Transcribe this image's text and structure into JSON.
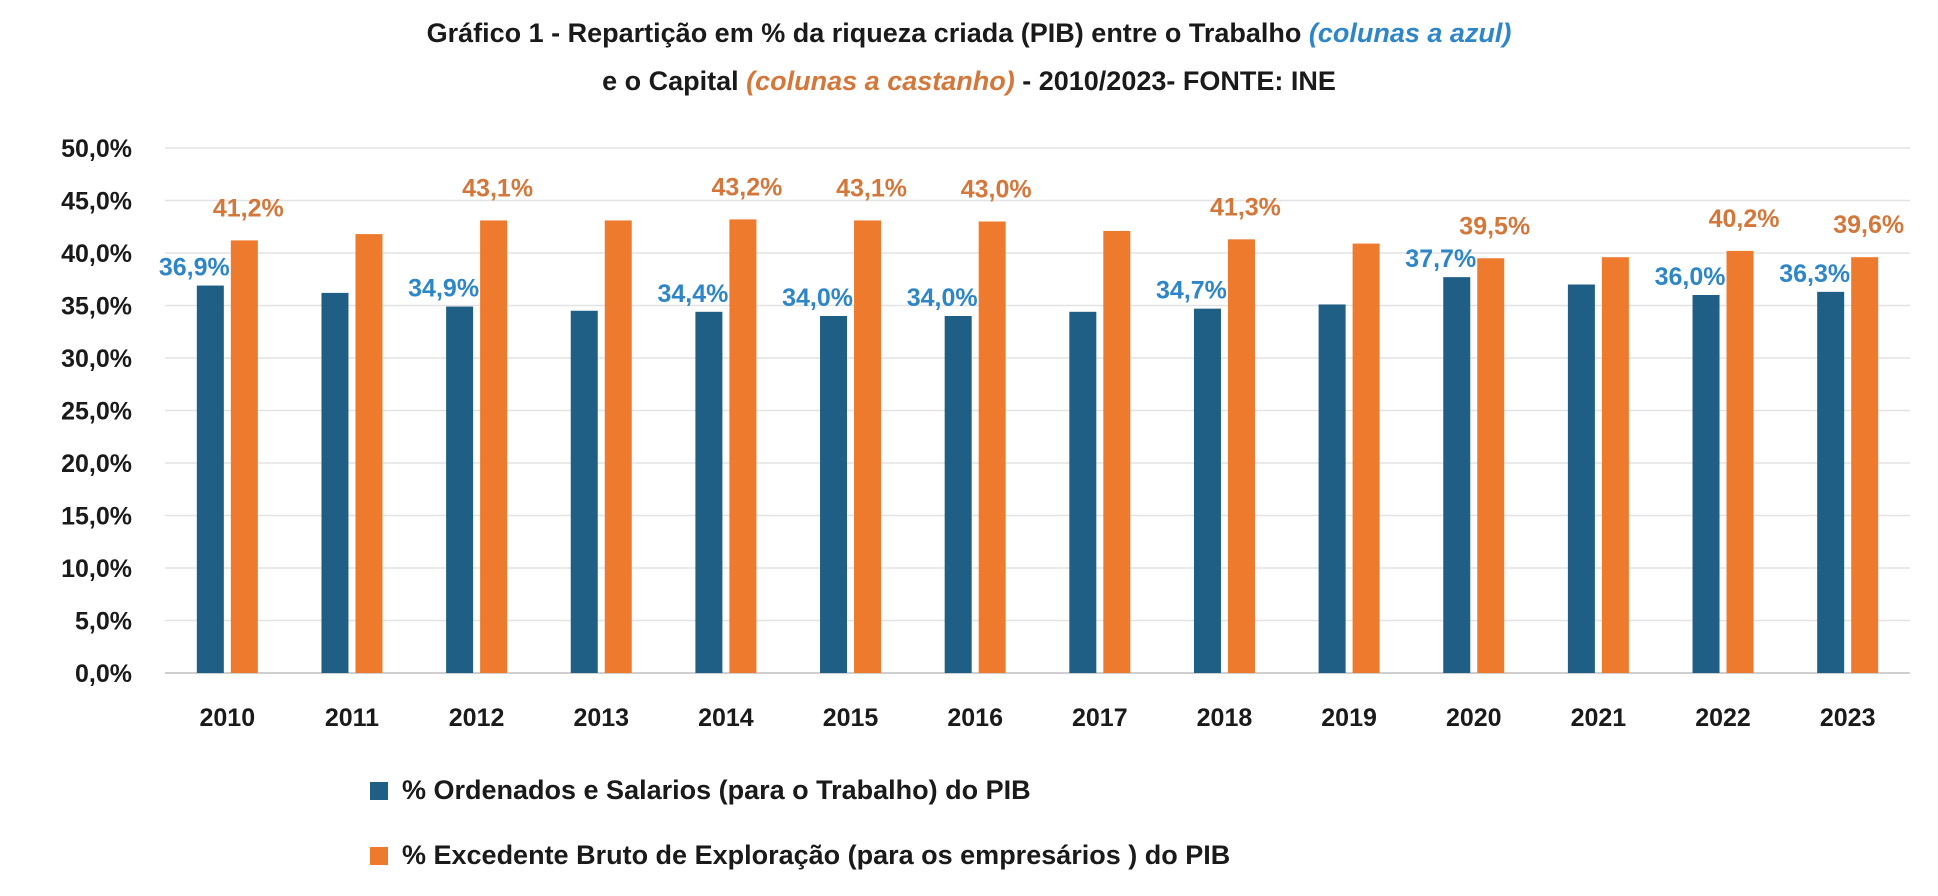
{
  "title": {
    "line1_main": "Gráfico 1 - Repartição em % da riqueza criada (PIB) entre o Trabalho",
    "line1_accent": "(colunas a azul)",
    "line2_start": "e o Capital",
    "line2_accent": "(colunas a castanho)",
    "line2_end": "- 2010/2023- FONTE: INE"
  },
  "chart_data": {
    "type": "bar",
    "categories": [
      "2010",
      "2011",
      "2012",
      "2013",
      "2014",
      "2015",
      "2016",
      "2017",
      "2018",
      "2019",
      "2020",
      "2021",
      "2022",
      "2023"
    ],
    "series": [
      {
        "name": "% Ordenados e Salarios (para o Trabalho) do PIB",
        "color": "#1f5f86",
        "values": [
          36.9,
          36.2,
          34.9,
          34.5,
          34.4,
          34.0,
          34.0,
          34.4,
          34.7,
          35.1,
          37.7,
          37.0,
          36.0,
          36.3
        ],
        "labels": [
          "36,9%",
          "",
          "34,9%",
          "",
          "34,4%",
          "34,0%",
          "34,0%",
          "",
          "34,7%",
          "",
          "37,7%",
          "",
          "36,0%",
          "36,3%"
        ],
        "label_color": "#2e86c8"
      },
      {
        "name": "% Excedente Bruto de Exploração (para os empresários ) do PIB",
        "color": "#ee7a2e",
        "values": [
          41.2,
          41.8,
          43.1,
          43.1,
          43.2,
          43.1,
          43.0,
          42.1,
          41.3,
          40.9,
          39.5,
          39.6,
          40.2,
          39.6
        ],
        "labels": [
          "41,2%",
          "",
          "43,1%",
          "",
          "43,2%",
          "43,1%",
          "43,0%",
          "",
          "41,3%",
          "",
          "39,5%",
          "",
          "40,2%",
          "39,6%"
        ],
        "label_color": "#d4773a"
      }
    ],
    "ylim": [
      0,
      50
    ],
    "ytick_labels": [
      "0,0%",
      "5,0%",
      "10,0%",
      "15,0%",
      "20,0%",
      "25,0%",
      "30,0%",
      "35,0%",
      "40,0%",
      "45,0%",
      "50,0%"
    ],
    "grid": true,
    "legend_position": "bottom",
    "xlabel": "",
    "ylabel": ""
  }
}
